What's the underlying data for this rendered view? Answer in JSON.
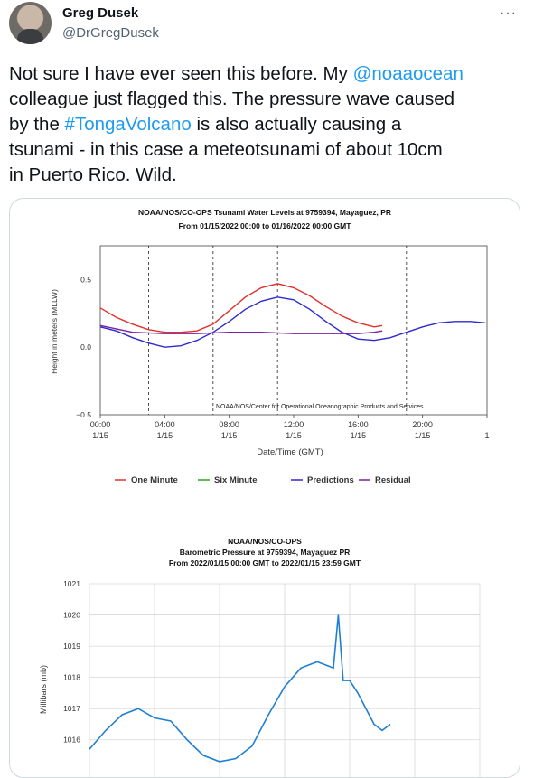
{
  "author": {
    "name": "Greg Dusek",
    "handle": "@DrGregDusek"
  },
  "more_icon": "more-horizontal-icon",
  "tweet": {
    "line1_pre": "Not sure I have ever seen this before. My ",
    "mention": "@noaaocean",
    "line2": "colleague just flagged this. The pressure wave caused",
    "line3_pre": "by the ",
    "hashtag": "#TongaVolcano",
    "line3_post": " is also actually causing a",
    "line4": "tsunami - in this case a meteotsunami of about 10cm",
    "line5": "in Puerto Rico. Wild."
  },
  "colors": {
    "one_minute": "#e0302a",
    "six_minute": "#2ca02c",
    "predictions": "#2b2bd0",
    "residual": "#7b1fa2",
    "pressure": "#1f7fd1",
    "link": "#1d9bf0"
  },
  "chart_data": [
    {
      "type": "line",
      "title": "NOAA/NOS/CO-OPS Tsunami Water Levels at 9759394, Mayaguez, PR",
      "subtitle": "From 01/15/2022 00:00 to 01/16/2022 00:00 GMT",
      "xlabel": "Date/Time (GMT)",
      "ylabel": "Height in meters (MLLW)",
      "annotation": "NOAA/NOS/Center for Operational Oceanographic Products and Services",
      "x_ticks": [
        {
          "time": "00:00",
          "date": "1/15"
        },
        {
          "time": "04:00",
          "date": "1/15"
        },
        {
          "time": "08:00",
          "date": "1/15"
        },
        {
          "time": "12:00",
          "date": "1/15"
        },
        {
          "time": "16:00",
          "date": "1/15"
        },
        {
          "time": "20:00",
          "date": "1/15"
        },
        {
          "time": "",
          "date": "1"
        }
      ],
      "y_ticks": [
        "0.5",
        "0.0",
        "−0.5"
      ],
      "xlim": [
        0,
        24
      ],
      "ylim": [
        -0.5,
        0.75
      ],
      "vlines": [
        3,
        7,
        11,
        15,
        19
      ],
      "series": [
        {
          "name": "One Minute",
          "x": [
            0,
            1,
            2,
            3,
            4,
            5,
            6,
            7,
            8,
            9,
            10,
            11,
            12,
            13,
            14,
            15,
            16,
            17,
            17.5
          ],
          "y": [
            0.29,
            0.22,
            0.17,
            0.13,
            0.11,
            0.11,
            0.12,
            0.17,
            0.27,
            0.37,
            0.44,
            0.47,
            0.44,
            0.38,
            0.3,
            0.23,
            0.18,
            0.15,
            0.16
          ]
        },
        {
          "name": "Six Minute",
          "x": [],
          "y": []
        },
        {
          "name": "Predictions",
          "x": [
            0,
            1,
            2,
            3,
            4,
            5,
            6,
            7,
            8,
            9,
            10,
            11,
            12,
            13,
            14,
            15,
            16,
            17,
            18,
            19,
            20,
            21,
            22,
            23,
            23.9
          ],
          "y": [
            0.15,
            0.12,
            0.07,
            0.03,
            0.0,
            0.01,
            0.05,
            0.11,
            0.19,
            0.28,
            0.34,
            0.37,
            0.35,
            0.28,
            0.19,
            0.11,
            0.06,
            0.05,
            0.07,
            0.11,
            0.15,
            0.18,
            0.19,
            0.19,
            0.18
          ]
        },
        {
          "name": "Residual",
          "x": [
            0,
            2,
            4,
            6,
            8,
            10,
            12,
            14,
            16,
            17,
            17.5
          ],
          "y": [
            0.16,
            0.11,
            0.1,
            0.1,
            0.11,
            0.11,
            0.1,
            0.1,
            0.1,
            0.11,
            0.12
          ]
        }
      ]
    },
    {
      "type": "line",
      "title_line1": "NOAA/NOS/CO-OPS",
      "title_line2": "Barometric Pressure at 9759394, Mayaguez PR",
      "title_line3": "From 2022/01/15 00:00 GMT to 2022/01/15 23:59 GMT",
      "ylabel": "Millibars (mb)",
      "y_ticks": [
        "1021",
        "1020",
        "1019",
        "1018",
        "1017",
        "1016"
      ],
      "ylim": [
        1015.5,
        1021
      ],
      "xlim": [
        0,
        24
      ],
      "series": [
        {
          "name": "",
          "x": [
            0,
            1,
            2,
            3,
            4,
            5,
            6,
            7,
            8,
            9,
            10,
            11,
            12,
            13,
            14,
            14.5,
            15,
            15.3,
            15.6,
            16,
            16.5,
            17,
            17.5,
            18,
            18.5
          ],
          "y": [
            1015.7,
            1016.3,
            1016.8,
            1017.0,
            1016.7,
            1016.6,
            1016.0,
            1015.5,
            1015.3,
            1015.4,
            1015.8,
            1016.8,
            1017.7,
            1018.3,
            1018.5,
            1018.4,
            1018.3,
            1020.0,
            1017.9,
            1017.9,
            1017.5,
            1017.0,
            1016.5,
            1016.3,
            1016.5
          ]
        }
      ]
    }
  ]
}
